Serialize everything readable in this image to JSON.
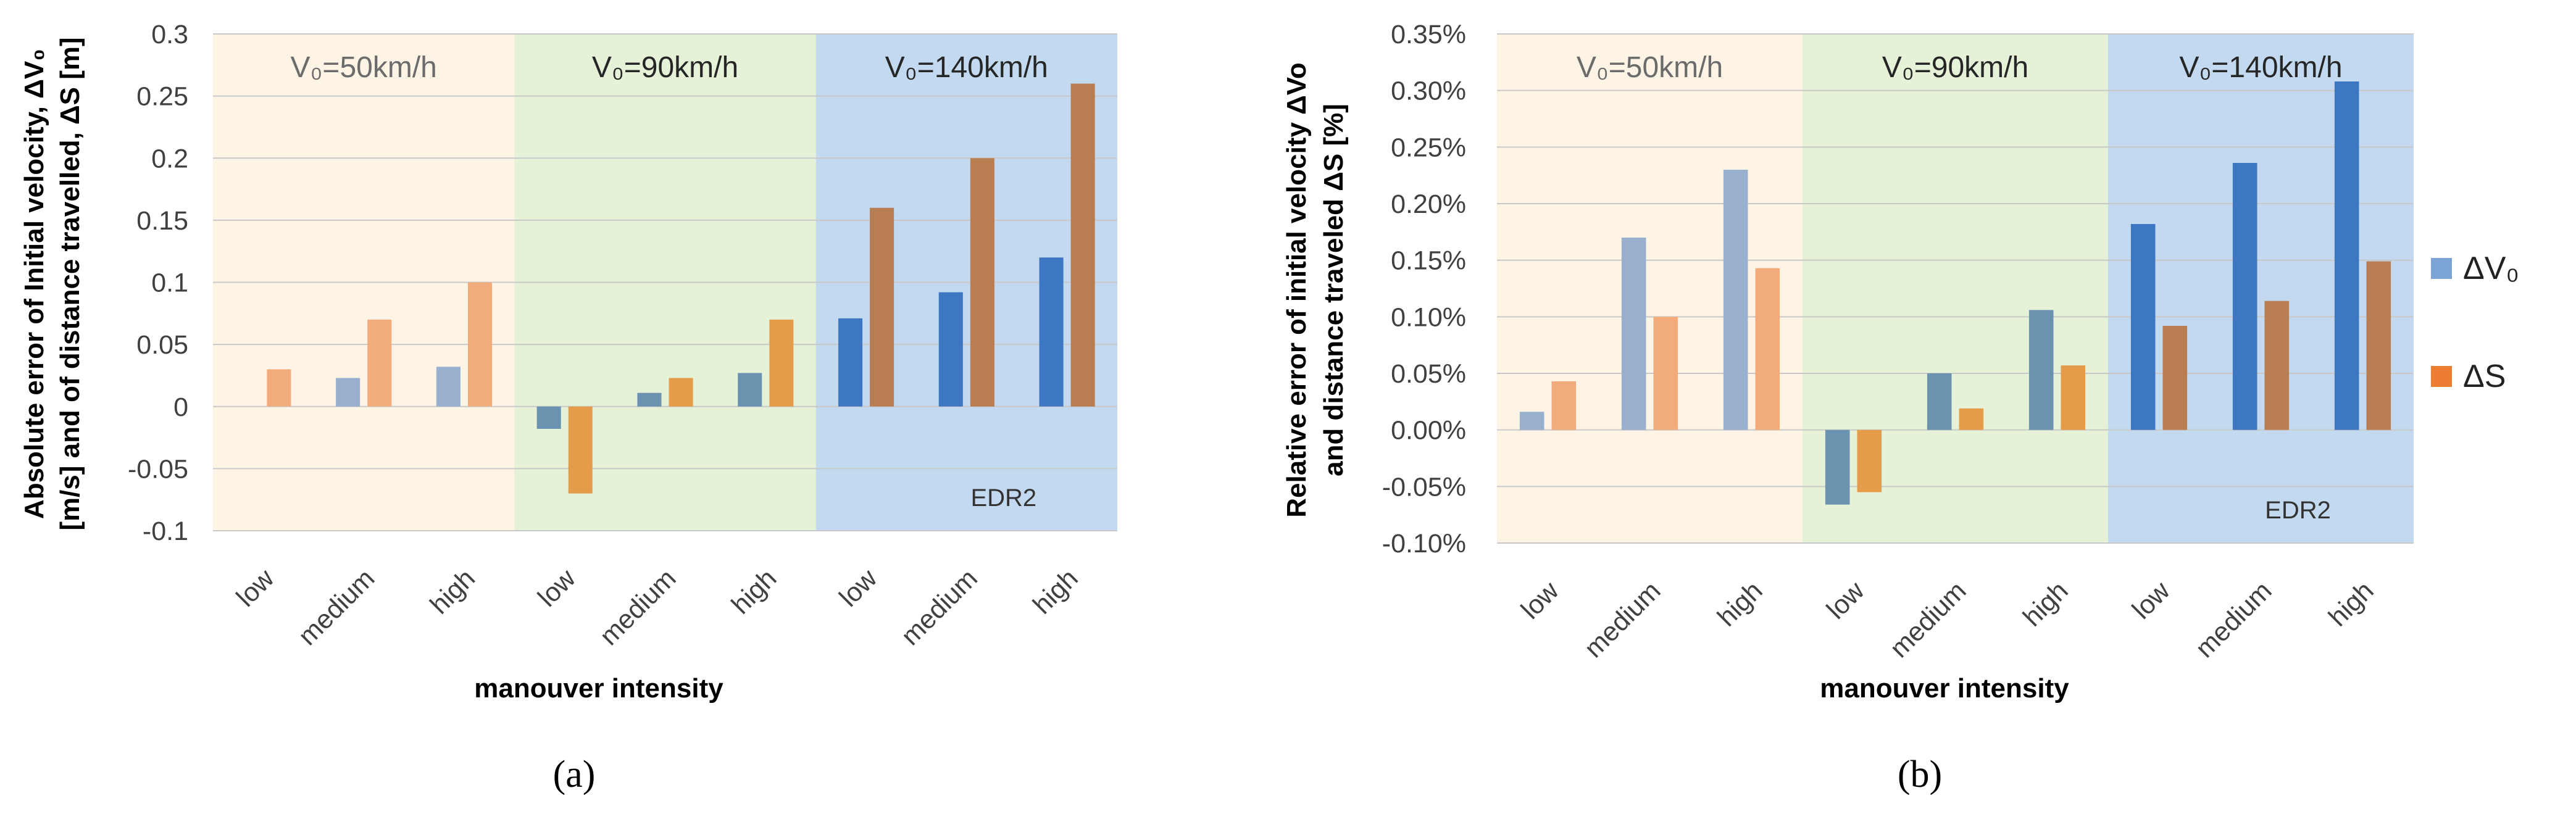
{
  "chart_data": [
    {
      "type": "bar",
      "panel_label": "(a)",
      "ylabel_lines": [
        "Absolute error of Initial velocity, ΔV₀",
        "[m/s] and of distance travelled, ΔS [m]"
      ],
      "xlabel": "manouver intensity",
      "ylim": [
        -0.1,
        0.3
      ],
      "yticks": [
        "-0.1",
        "-0.05",
        "0",
        "0.05",
        "0.1",
        "0.15",
        "0.2",
        "0.25",
        "0.3"
      ],
      "tick_values": [
        -0.1,
        -0.05,
        0,
        0.05,
        0.1,
        0.15,
        0.2,
        0.25,
        0.3
      ],
      "categories": [
        "low",
        "medium",
        "high",
        "low",
        "medium",
        "high",
        "low",
        "medium",
        "high"
      ],
      "groups": [
        "V₀=50km/h",
        "V₀=90km/h",
        "V₀=140km/h"
      ],
      "series": [
        {
          "name": "ΔV₀",
          "values": [
            0.0,
            0.023,
            0.032,
            -0.018,
            0.011,
            0.027,
            0.071,
            0.092,
            0.12
          ]
        },
        {
          "name": "ΔS",
          "values": [
            0.03,
            0.07,
            0.1,
            -0.07,
            0.023,
            0.07,
            0.16,
            0.2,
            0.26
          ]
        }
      ],
      "annotation": "EDR2",
      "grid": true
    },
    {
      "type": "bar",
      "panel_label": "(b)",
      "ylabel_lines": [
        "Relative error of initial velocity ΔVo",
        "and distance traveled ΔS  [%]"
      ],
      "xlabel": "manouver intensity",
      "ylim": [
        -0.001,
        0.0035
      ],
      "yticks": [
        "-0.10%",
        "-0.05%",
        "0.00%",
        "0.05%",
        "0.10%",
        "0.15%",
        "0.20%",
        "0.25%",
        "0.30%",
        "0.35%"
      ],
      "tick_values": [
        -0.001,
        -0.0005,
        0,
        0.0005,
        0.001,
        0.0015,
        0.002,
        0.0025,
        0.003,
        0.0035
      ],
      "categories": [
        "low",
        "medium",
        "high",
        "low",
        "medium",
        "high",
        "low",
        "medium",
        "high"
      ],
      "groups": [
        "V₀=50km/h",
        "V₀=90km/h",
        "V₀=140km/h"
      ],
      "series": [
        {
          "name": "ΔV₀",
          "values": [
            0.00016,
            0.0017,
            0.0023,
            -0.00066,
            0.0005,
            0.00106,
            0.00182,
            0.00236,
            0.00308
          ]
        },
        {
          "name": "ΔS",
          "values": [
            0.00043,
            0.001,
            0.00143,
            -0.00055,
            0.00019,
            0.00057,
            0.00092,
            0.00114,
            0.00149
          ]
        }
      ],
      "annotation": "EDR2",
      "grid": true
    }
  ],
  "legend": [
    {
      "label": "ΔV₀",
      "color": "#7ba3d6"
    },
    {
      "label": "ΔS",
      "color": "#ed7d31"
    }
  ],
  "colors": {
    "bands": [
      "#fdf4e6",
      "#e5f2d8",
      "#c2d9ef"
    ],
    "band_text": [
      "#6b6b6b",
      "#262626",
      "#262626"
    ],
    "v0_bars": [
      "#98b0ce",
      "#6b93b0",
      "#3d77c2"
    ],
    "s_bars": [
      "#f2ac7c",
      "#e59c4a",
      "#b97d52"
    ],
    "grid": "#c8c8c8"
  }
}
